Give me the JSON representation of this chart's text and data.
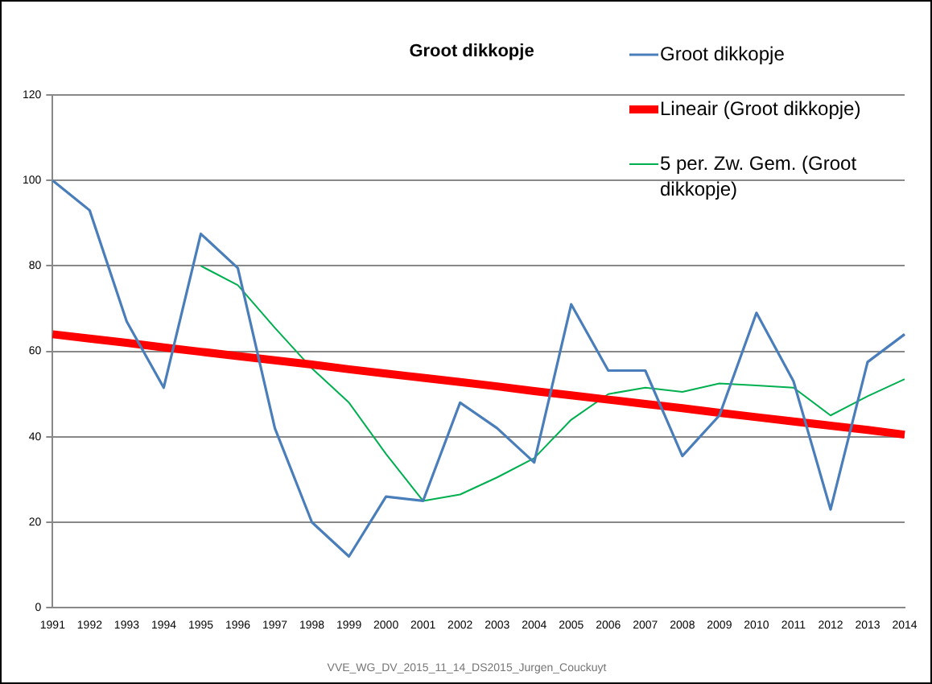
{
  "chart_data": {
    "type": "line",
    "title": "Groot dikkopje",
    "categories": [
      "1991",
      "1992",
      "1993",
      "1994",
      "1995",
      "1996",
      "1997",
      "1998",
      "1999",
      "2000",
      "2001",
      "2002",
      "2003",
      "2004",
      "2005",
      "2006",
      "2007",
      "2008",
      "2009",
      "2010",
      "2011",
      "2012",
      "2013",
      "2014"
    ],
    "series": [
      {
        "name": "Groot dikkopje",
        "color": "#4a7ebb",
        "values": [
          100,
          93,
          67,
          51.5,
          87.5,
          79.5,
          42,
          20,
          12,
          26,
          25,
          48,
          42,
          34,
          71,
          55.5,
          55.5,
          35.5,
          45,
          69,
          53,
          23,
          57.5,
          64
        ]
      },
      {
        "name": "Lineair (Groot dikkopje)",
        "color": "#ff0000",
        "values": [
          64,
          63,
          62,
          60.9,
          59.9,
          58.9,
          57.9,
          56.9,
          55.8,
          54.8,
          53.8,
          52.8,
          51.8,
          50.7,
          49.7,
          48.7,
          47.7,
          46.7,
          45.6,
          44.6,
          43.6,
          42.6,
          41.6,
          40.5
        ]
      },
      {
        "name": "5 per. Zw. Gem. (Groot dikkopje)",
        "color": "#00b050",
        "values": [
          null,
          null,
          null,
          null,
          80,
          75.5,
          65.5,
          56,
          48,
          36,
          25,
          26.5,
          30.5,
          35,
          44,
          50,
          51.5,
          50.5,
          52.5,
          52,
          51.5,
          45,
          49.5,
          53.5
        ]
      }
    ],
    "ylim": [
      0,
      120
    ],
    "yticks": [
      0,
      20,
      40,
      60,
      80,
      100,
      120
    ],
    "grid": "y",
    "legend": "top right",
    "marker": "none",
    "line_style": "solid",
    "annotations": [
      "VVE_WG_DV_2015_11_14_DS2015_Jurgen_Couckuyt"
    ]
  }
}
